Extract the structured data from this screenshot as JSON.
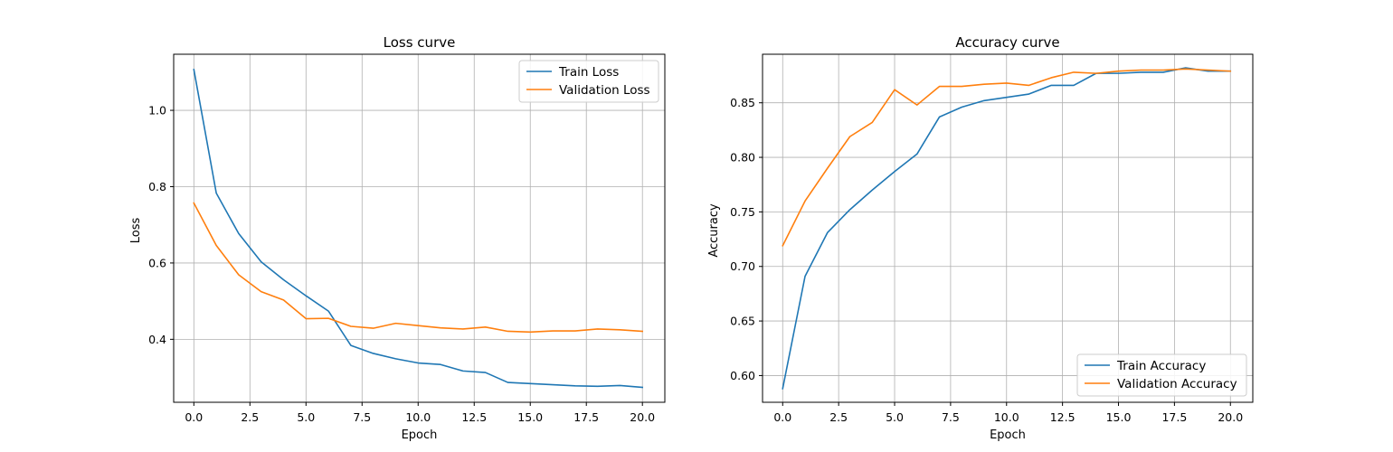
{
  "chart_data": [
    {
      "type": "line",
      "title": "Loss curve",
      "xlabel": "Epoch",
      "ylabel": "Loss",
      "xlim": [
        -0.9,
        21.0
      ],
      "ylim": [
        0.235,
        1.147
      ],
      "xticks": [
        0.0,
        2.5,
        5.0,
        7.5,
        10.0,
        12.5,
        15.0,
        17.5,
        20.0
      ],
      "xtick_labels": [
        "0.0",
        "2.5",
        "5.0",
        "7.5",
        "10.0",
        "12.5",
        "15.0",
        "17.5",
        "20.0"
      ],
      "yticks": [
        0.4,
        0.6,
        0.8,
        1.0
      ],
      "ytick_labels": [
        "0.4",
        "0.6",
        "0.8",
        "1.0"
      ],
      "grid": true,
      "legend_position": "top-right",
      "x": [
        0,
        1,
        2,
        3,
        4,
        5,
        6,
        7,
        8,
        9,
        10,
        11,
        12,
        13,
        14,
        15,
        16,
        17,
        18,
        19,
        20
      ],
      "series": [
        {
          "name": "Train Loss",
          "color": "#1f77b4",
          "values": [
            1.107,
            0.783,
            0.677,
            0.603,
            0.556,
            0.514,
            0.474,
            0.384,
            0.363,
            0.349,
            0.338,
            0.334,
            0.317,
            0.313,
            0.287,
            0.284,
            0.281,
            0.278,
            0.277,
            0.279,
            0.274
          ]
        },
        {
          "name": "Validation Loss",
          "color": "#ff7f0e",
          "values": [
            0.757,
            0.646,
            0.569,
            0.525,
            0.503,
            0.454,
            0.455,
            0.434,
            0.429,
            0.442,
            0.436,
            0.43,
            0.427,
            0.432,
            0.421,
            0.419,
            0.422,
            0.422,
            0.427,
            0.425,
            0.421
          ]
        }
      ]
    },
    {
      "type": "line",
      "title": "Accuracy curve",
      "xlabel": "Epoch",
      "ylabel": "Accuracy",
      "xlim": [
        -0.9,
        21.0
      ],
      "ylim": [
        0.5755,
        0.8945
      ],
      "xticks": [
        0.0,
        2.5,
        5.0,
        7.5,
        10.0,
        12.5,
        15.0,
        17.5,
        20.0
      ],
      "xtick_labels": [
        "0.0",
        "2.5",
        "5.0",
        "7.5",
        "10.0",
        "12.5",
        "15.0",
        "17.5",
        "20.0"
      ],
      "yticks": [
        0.6,
        0.65,
        0.7,
        0.75,
        0.8,
        0.85
      ],
      "ytick_labels": [
        "0.60",
        "0.65",
        "0.70",
        "0.75",
        "0.80",
        "0.85"
      ],
      "grid": true,
      "legend_position": "bottom-right",
      "x": [
        0,
        1,
        2,
        3,
        4,
        5,
        6,
        7,
        8,
        9,
        10,
        11,
        12,
        13,
        14,
        15,
        16,
        17,
        18,
        19,
        20
      ],
      "series": [
        {
          "name": "Train Accuracy",
          "color": "#1f77b4",
          "values": [
            0.588,
            0.691,
            0.731,
            0.752,
            0.77,
            0.787,
            0.803,
            0.837,
            0.846,
            0.852,
            0.855,
            0.858,
            0.866,
            0.866,
            0.877,
            0.877,
            0.878,
            0.878,
            0.882,
            0.879,
            0.879
          ]
        },
        {
          "name": "Validation Accuracy",
          "color": "#ff7f0e",
          "values": [
            0.719,
            0.76,
            0.79,
            0.819,
            0.832,
            0.862,
            0.848,
            0.865,
            0.865,
            0.867,
            0.868,
            0.866,
            0.873,
            0.878,
            0.877,
            0.879,
            0.88,
            0.88,
            0.881,
            0.88,
            0.879
          ]
        }
      ]
    }
  ]
}
